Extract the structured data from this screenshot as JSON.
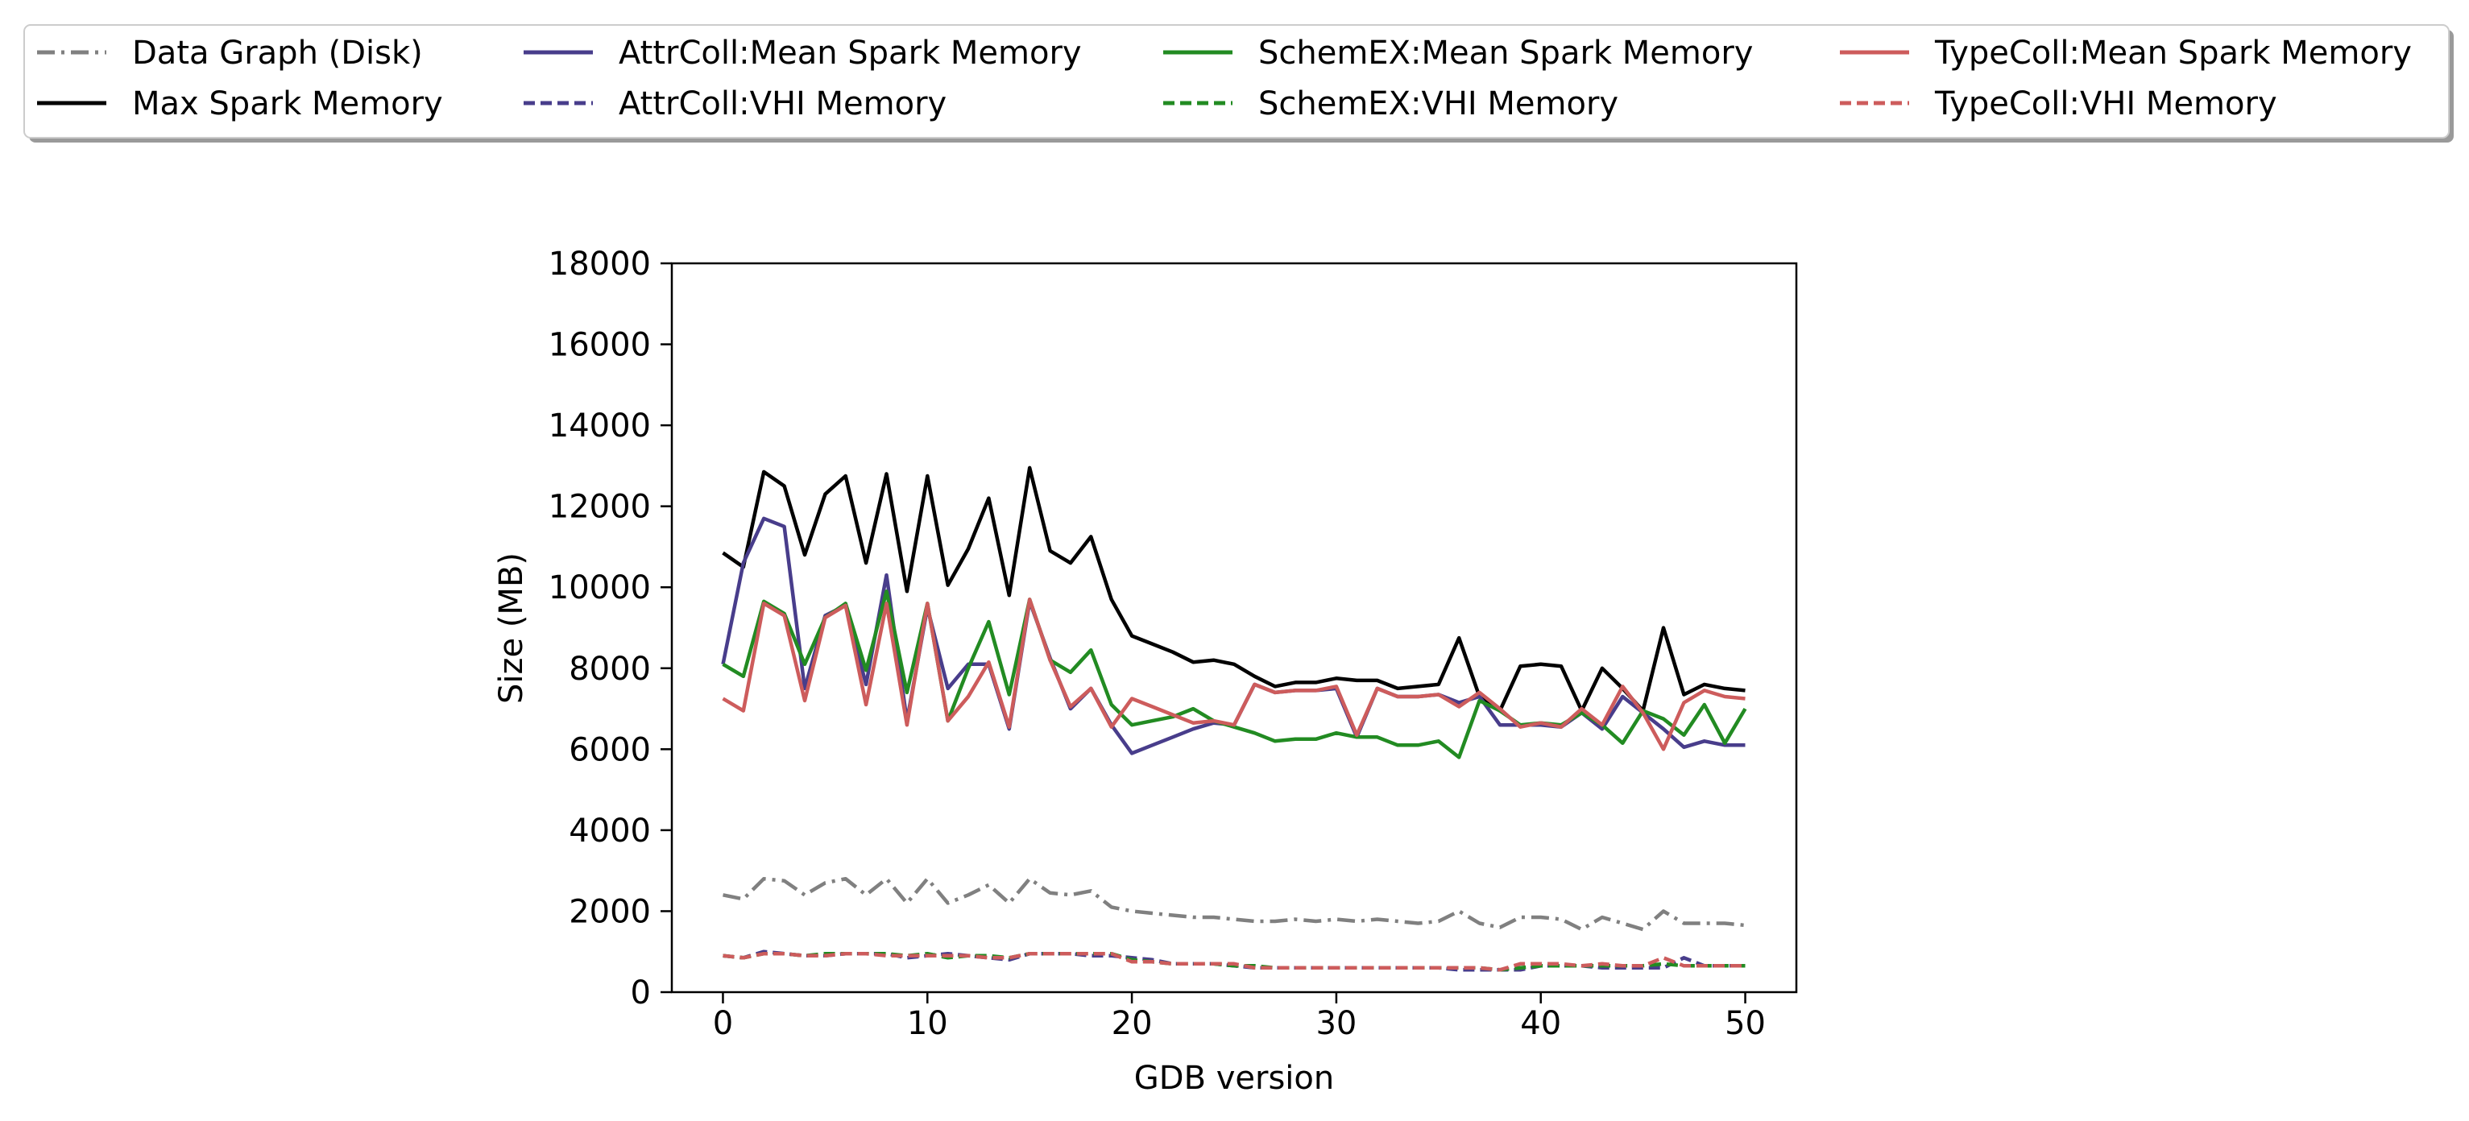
{
  "chart_data": {
    "type": "line",
    "xlabel": "GDB version",
    "ylabel": "Size (MB)",
    "xlim": [
      -2.5,
      52.5
    ],
    "ylim": [
      0,
      18000
    ],
    "xticks": [
      0,
      10,
      20,
      30,
      40,
      50
    ],
    "yticks": [
      0,
      2000,
      4000,
      6000,
      8000,
      10000,
      12000,
      14000,
      16000,
      18000
    ],
    "grid": false,
    "legend_placement": "top, above plot, 4 columns",
    "x": [
      0,
      1,
      2,
      3,
      4,
      5,
      6,
      7,
      8,
      9,
      10,
      11,
      12,
      13,
      14,
      15,
      16,
      17,
      18,
      19,
      20,
      21,
      22,
      23,
      24,
      25,
      26,
      27,
      28,
      29,
      30,
      31,
      32,
      33,
      34,
      35,
      36,
      37,
      38,
      39,
      40,
      41,
      42,
      43,
      44,
      45,
      46,
      47,
      48,
      49,
      50
    ],
    "series": [
      {
        "name": "Data Graph (Disk)",
        "color": "#808080",
        "style": "dashdot",
        "values": [
          2400,
          2300,
          2800,
          2750,
          2400,
          2700,
          2800,
          2400,
          2800,
          2200,
          2800,
          2200,
          2400,
          2650,
          2200,
          2800,
          2450,
          2400,
          2500,
          2100,
          2000,
          1950,
          1900,
          1850,
          1850,
          1800,
          1750,
          1750,
          1800,
          1750,
          1800,
          1750,
          1800,
          1750,
          1700,
          1750,
          2000,
          1700,
          1600,
          1850,
          1850,
          1800,
          1550,
          1850,
          1700,
          1550,
          2000,
          1700,
          1700,
          1700,
          1650
        ]
      },
      {
        "name": "Max Spark Memory",
        "color": "#000000",
        "style": "solid",
        "values": [
          10850,
          10500,
          12850,
          12500,
          10800,
          12300,
          12750,
          10600,
          12800,
          9900,
          12750,
          10050,
          10950,
          12200,
          9800,
          12950,
          10900,
          10600,
          11250,
          9700,
          8800,
          8600,
          8400,
          8150,
          8200,
          8100,
          7800,
          7550,
          7650,
          7650,
          7750,
          7700,
          7700,
          7500,
          7550,
          7600,
          8750,
          7300,
          6950,
          8050,
          8100,
          8050,
          6950,
          8000,
          7500,
          6950,
          9000,
          7350,
          7600,
          7500,
          7450
        ]
      },
      {
        "name": "AttrColl:Mean Spark Memory",
        "color": "#483d8b",
        "style": "solid",
        "values": [
          8100,
          10600,
          11700,
          11500,
          7500,
          9300,
          9550,
          7600,
          10300,
          6700,
          9500,
          7500,
          8100,
          8100,
          6500,
          9650,
          8250,
          7000,
          7500,
          6600,
          5900,
          6100,
          6300,
          6500,
          6650,
          6600,
          7600,
          7400,
          7450,
          7450,
          7500,
          6300,
          7500,
          7300,
          7300,
          7350,
          7150,
          7300,
          6600,
          6600,
          6600,
          6550,
          6900,
          6500,
          7300,
          6900,
          6500,
          6050,
          6200,
          6100,
          6100
        ]
      },
      {
        "name": "AttrColl:VHI Memory",
        "color": "#483d8b",
        "style": "dashed",
        "values": [
          900,
          850,
          1000,
          950,
          900,
          900,
          950,
          950,
          950,
          850,
          900,
          950,
          900,
          850,
          800,
          950,
          950,
          950,
          900,
          900,
          850,
          800,
          700,
          700,
          700,
          650,
          600,
          600,
          600,
          600,
          600,
          600,
          600,
          600,
          600,
          600,
          550,
          550,
          550,
          550,
          650,
          650,
          650,
          600,
          600,
          600,
          600,
          850,
          650,
          650,
          650
        ]
      },
      {
        "name": "SchemEX:Mean Spark Memory",
        "color": "#228b22",
        "style": "solid",
        "values": [
          8100,
          7800,
          9650,
          9350,
          8100,
          9250,
          9600,
          7950,
          9900,
          7400,
          9600,
          6700,
          8000,
          9150,
          7350,
          9700,
          8200,
          7900,
          8450,
          7100,
          6600,
          6700,
          6800,
          7000,
          6700,
          6550,
          6400,
          6200,
          6250,
          6250,
          6400,
          6300,
          6300,
          6100,
          6100,
          6200,
          5800,
          7200,
          6950,
          6600,
          6650,
          6600,
          6900,
          6600,
          6150,
          6950,
          6750,
          6350,
          7100,
          6150,
          7000
        ]
      },
      {
        "name": "SchemEX:VHI Memory",
        "color": "#228b22",
        "style": "dashed",
        "values": [
          900,
          850,
          950,
          950,
          900,
          950,
          950,
          950,
          950,
          900,
          950,
          850,
          900,
          900,
          850,
          950,
          950,
          950,
          950,
          950,
          800,
          750,
          700,
          700,
          700,
          650,
          650,
          600,
          600,
          600,
          600,
          600,
          600,
          600,
          600,
          600,
          600,
          600,
          550,
          600,
          650,
          650,
          650,
          650,
          650,
          650,
          700,
          650,
          650,
          650,
          650
        ]
      },
      {
        "name": "TypeColl:Mean Spark Memory",
        "color": "#cd5c5c",
        "style": "solid",
        "values": [
          7250,
          6950,
          9600,
          9300,
          7200,
          9250,
          9550,
          7100,
          9600,
          6600,
          9600,
          6700,
          7300,
          8150,
          6550,
          9700,
          8200,
          7050,
          7500,
          6550,
          7250,
          7050,
          6850,
          6650,
          6700,
          6600,
          7600,
          7400,
          7450,
          7450,
          7550,
          6350,
          7500,
          7300,
          7300,
          7350,
          7050,
          7400,
          7000,
          6550,
          6650,
          6550,
          7000,
          6600,
          7550,
          6900,
          6000,
          7150,
          7450,
          7300,
          7250
        ]
      },
      {
        "name": "TypeColl:VHI Memory",
        "color": "#cd5c5c",
        "style": "dashed",
        "values": [
          900,
          850,
          950,
          950,
          900,
          900,
          950,
          950,
          900,
          900,
          900,
          900,
          900,
          850,
          850,
          950,
          950,
          950,
          950,
          950,
          750,
          750,
          700,
          700,
          700,
          700,
          600,
          600,
          600,
          600,
          600,
          600,
          600,
          600,
          600,
          600,
          600,
          600,
          550,
          700,
          700,
          700,
          650,
          700,
          650,
          650,
          850,
          650,
          650,
          650,
          650
        ]
      }
    ]
  }
}
